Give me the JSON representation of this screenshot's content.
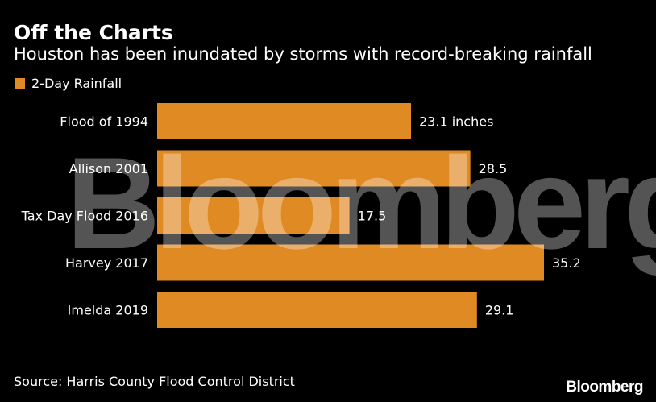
{
  "header": {
    "title": "Off the Charts",
    "subtitle": "Houston has been inundated by storms with record-breaking rainfall"
  },
  "legend": {
    "label": "2-Day Rainfall"
  },
  "colors": {
    "bar": "#e08a23",
    "background": "#000000",
    "text": "#ffffff"
  },
  "chart_data": {
    "type": "bar",
    "orientation": "horizontal",
    "categories": [
      "Flood of 1994",
      "Allison 2001",
      "Tax Day Flood 2016",
      "Harvey 2017",
      "Imelda 2019"
    ],
    "series": [
      {
        "name": "2-Day Rainfall",
        "values": [
          23.1,
          28.5,
          17.5,
          35.2,
          29.1
        ]
      }
    ],
    "data_labels": [
      "23.1 inches",
      "28.5",
      "17.5",
      "35.2",
      "29.1"
    ],
    "title": "Off the Charts",
    "subtitle": "Houston has been inundated by storms with record-breaking rainfall",
    "xlim": [
      0,
      35.2
    ],
    "grid": false,
    "legend_position": "top-left"
  },
  "footer": {
    "source": "Source: Harris County Flood Control District",
    "brand": "Bloomberg"
  },
  "watermark": {
    "text": "Bloomberg"
  }
}
